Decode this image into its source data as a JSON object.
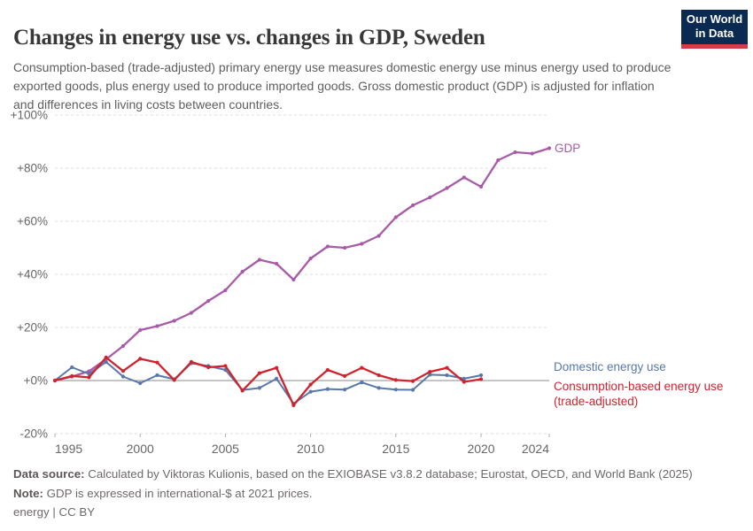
{
  "header": {
    "title": "Changes in energy use vs. changes in GDP, Sweden",
    "subtitle": "Consumption-based (trade-adjusted) primary energy use measures domestic energy use minus energy used to produce exported goods, plus energy used to produce imported goods. Gross domestic product (GDP) is adjusted for inflation and differences in living costs between countries."
  },
  "logo": {
    "line1": "Our World",
    "line2": "in Data"
  },
  "chart_data": {
    "type": "line",
    "title": "Changes in energy use vs. changes in GDP, Sweden",
    "xlabel": "",
    "ylabel": "",
    "xlim": [
      1995,
      2024
    ],
    "ylim": [
      -20,
      100
    ],
    "grid": "dashed-horizontal",
    "legend_position": "right-of-line-ends",
    "x_ticks": [
      1995,
      2000,
      2005,
      2010,
      2015,
      2020,
      2024
    ],
    "y_ticks": [
      {
        "v": 100,
        "label": "+100%"
      },
      {
        "v": 80,
        "label": "+80%"
      },
      {
        "v": 60,
        "label": "+60%"
      },
      {
        "v": 40,
        "label": "+40%"
      },
      {
        "v": 20,
        "label": "+20%"
      },
      {
        "v": 0,
        "label": "+0%"
      },
      {
        "v": -20,
        "label": "-20%"
      }
    ],
    "unit": "percent change",
    "series": [
      {
        "name": "GDP",
        "color": "#a85ba8",
        "start_year": 1995,
        "end_year": 2024,
        "values": [
          0,
          1.5,
          3.5,
          8,
          13,
          19,
          20.5,
          22.5,
          25.5,
          30,
          34,
          41,
          45.5,
          44,
          38,
          46,
          50.5,
          50,
          51.5,
          54.5,
          61.5,
          66,
          69,
          72.5,
          76.5,
          73,
          83,
          86,
          85.5,
          87.5
        ]
      },
      {
        "name": "Domestic energy use",
        "color": "#5878ab",
        "start_year": 1995,
        "end_year": 2020,
        "values": [
          0,
          5,
          2.5,
          7,
          1.5,
          -1,
          2,
          0.5,
          6.5,
          5.5,
          4,
          -3.6,
          -2.8,
          0.7,
          -8.7,
          -4.2,
          -3.2,
          -3.4,
          -0.7,
          -2.8,
          -3.4,
          -3.5,
          2.2,
          2,
          0.7,
          2
        ]
      },
      {
        "name": "Consumption-based energy use (trade-adjusted)",
        "label_lines": [
          "Consumption-based energy use",
          "(trade-adjusted)"
        ],
        "color": "#d0232d",
        "start_year": 1995,
        "end_year": 2020,
        "values": [
          0,
          1.7,
          1.2,
          8.7,
          3.6,
          8.2,
          6.8,
          0.2,
          7,
          5,
          5.5,
          -3.8,
          2.8,
          4.8,
          -9.3,
          -1.5,
          4,
          1.7,
          4.8,
          2,
          0.2,
          -0.2,
          3.3,
          4.8,
          -0.5,
          0.5
        ]
      }
    ]
  },
  "footer": {
    "source_label": "Data source:",
    "source_text": " Calculated by Viktoras Kulionis, based on the EXIOBASE v3.8.2 database; Eurostat, OECD, and World Bank (2025)",
    "note_label": "Note:",
    "note_text": " GDP is expressed in international-$ at 2021 prices.",
    "tag_label": "energy",
    "divider": " | ",
    "license_label": "CC BY"
  }
}
